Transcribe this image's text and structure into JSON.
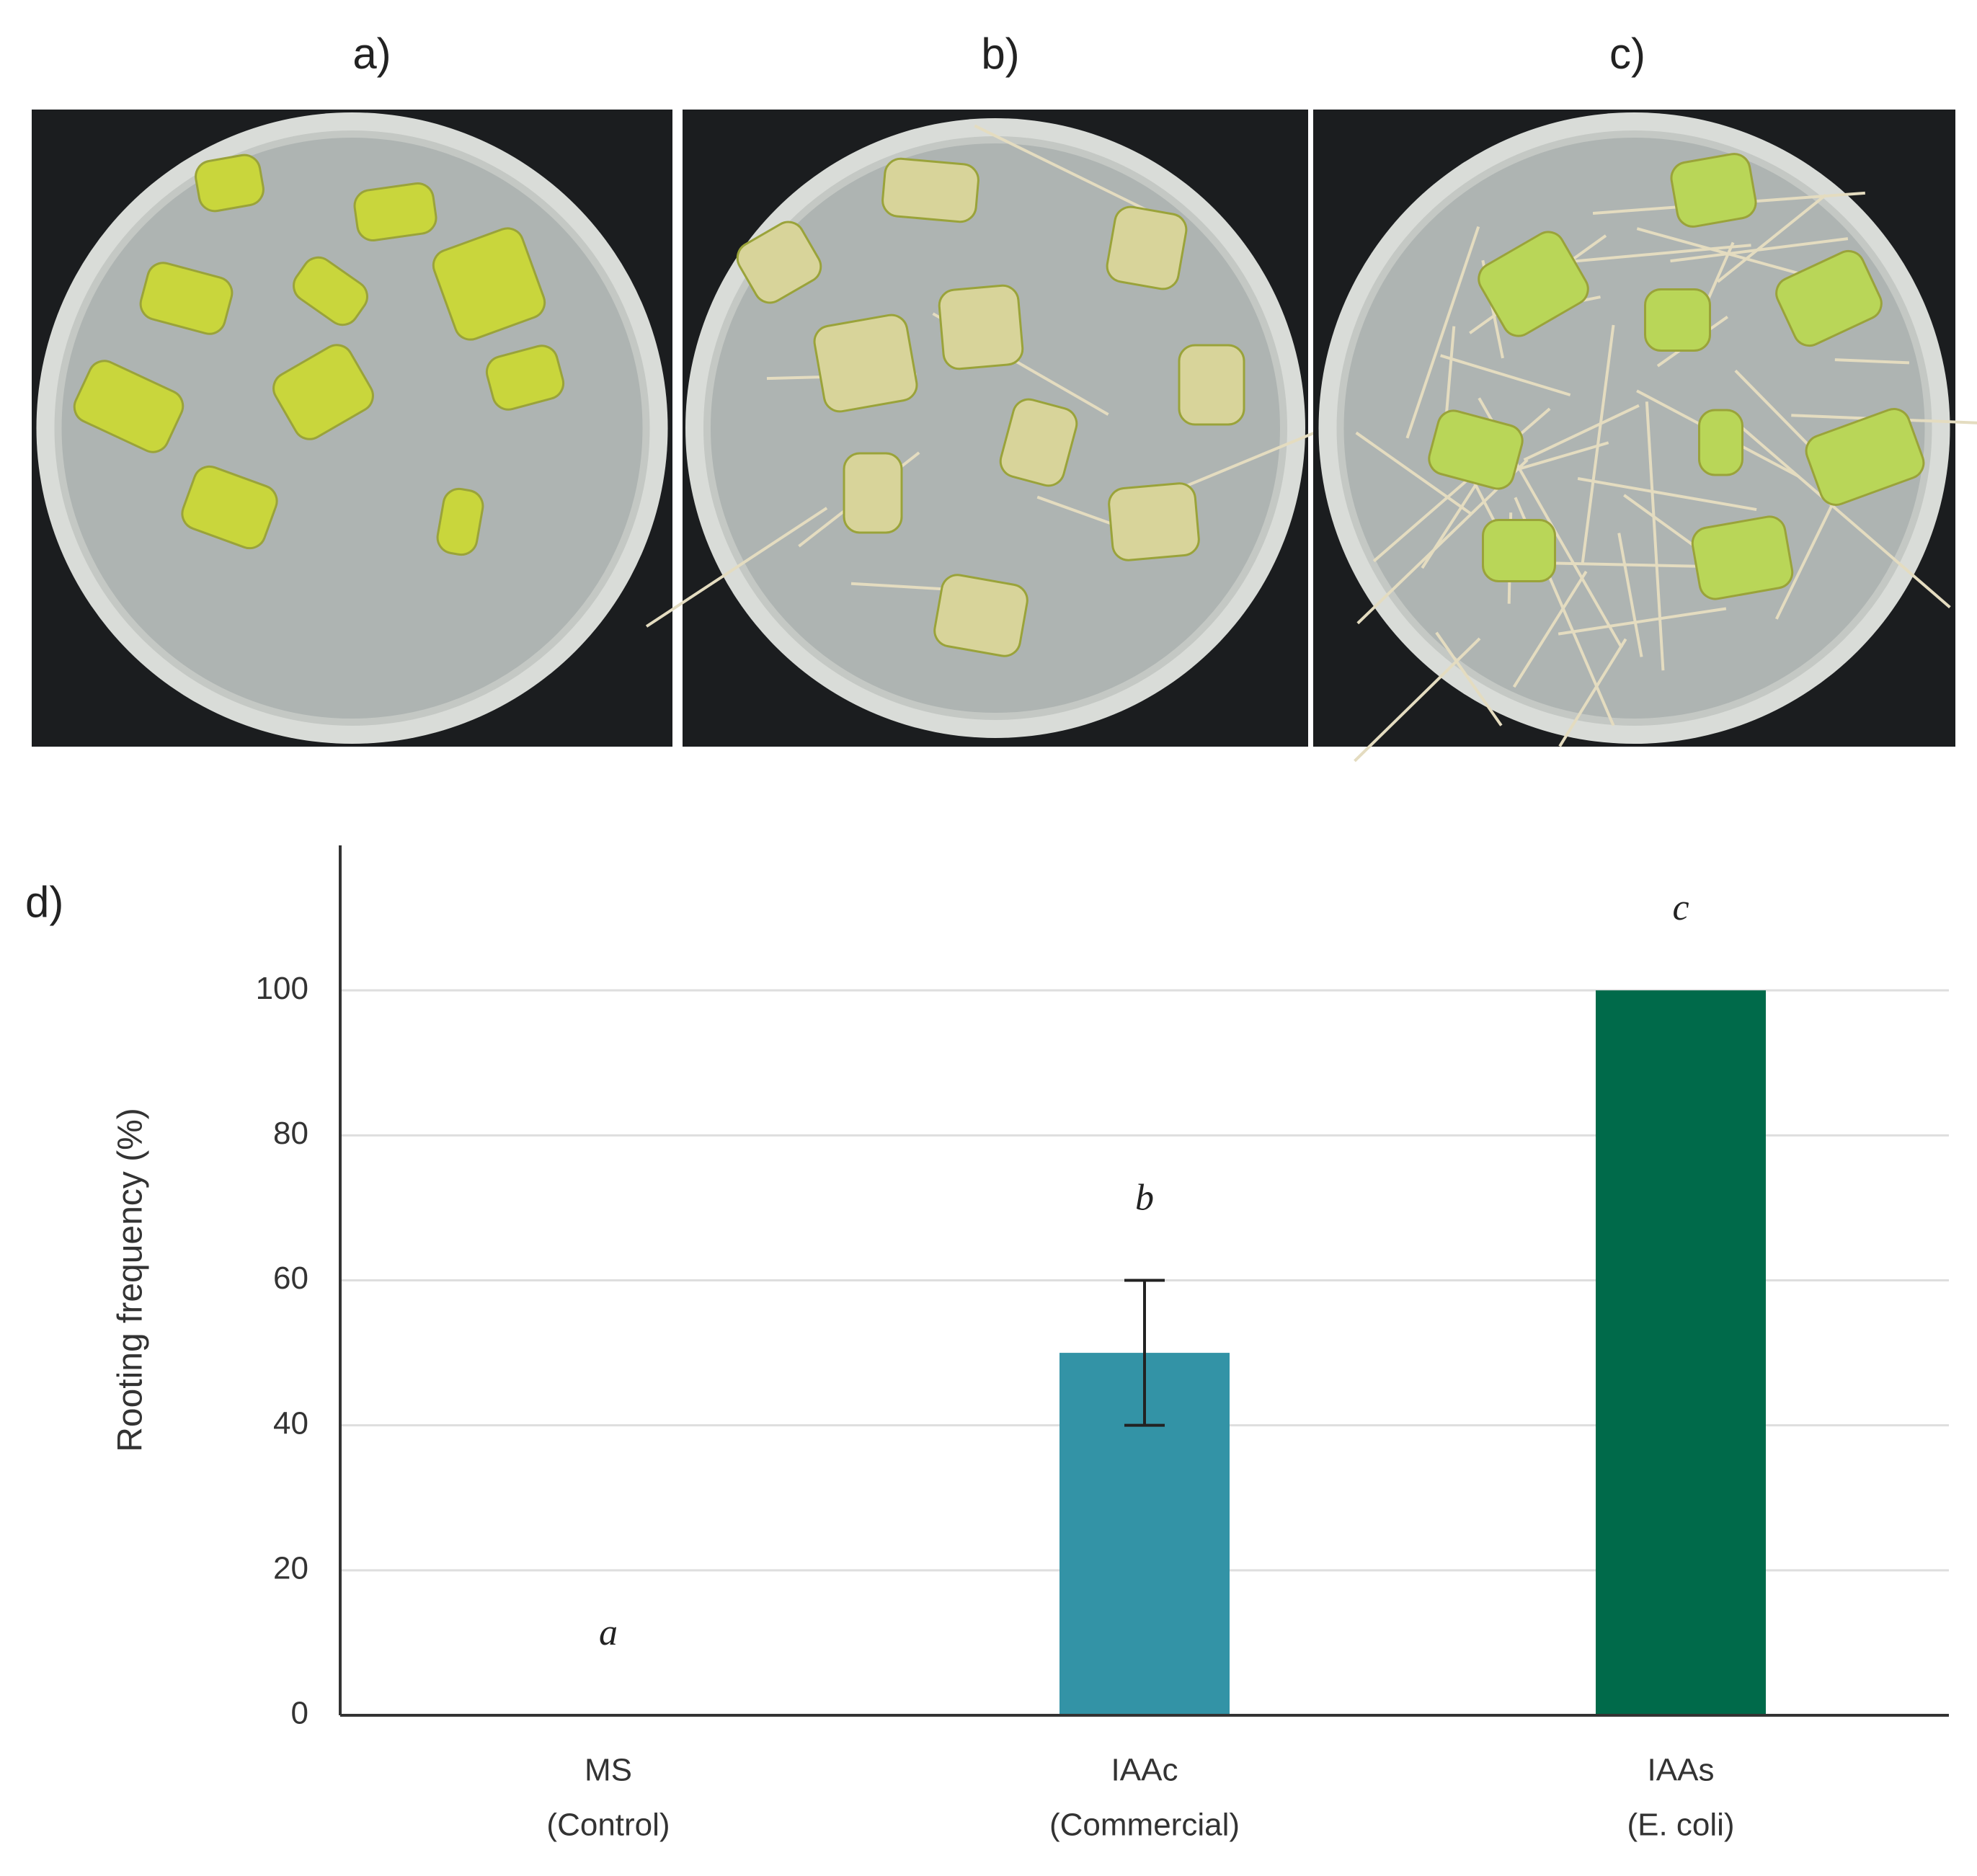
{
  "photo_labels": [
    "a)",
    "b)",
    "c)"
  ],
  "chart_data": {
    "type": "bar",
    "panel_label": "d)",
    "y_label": "Rooting frequency (%)",
    "categories": [
      [
        "MS",
        "(Control)"
      ],
      [
        "IAAc",
        "(Commercial)"
      ],
      [
        "IAAs",
        "(E. coli)"
      ]
    ],
    "values": [
      0,
      50,
      100
    ],
    "errors": [
      null,
      10,
      null
    ],
    "annotations": [
      "a",
      "b",
      "c"
    ],
    "colors": [
      "#3393a6",
      "#3393a6",
      "#006a4a"
    ],
    "ylim": [
      0,
      120
    ],
    "yticks": [
      0,
      20,
      40,
      60,
      80,
      100
    ],
    "grid": true
  }
}
